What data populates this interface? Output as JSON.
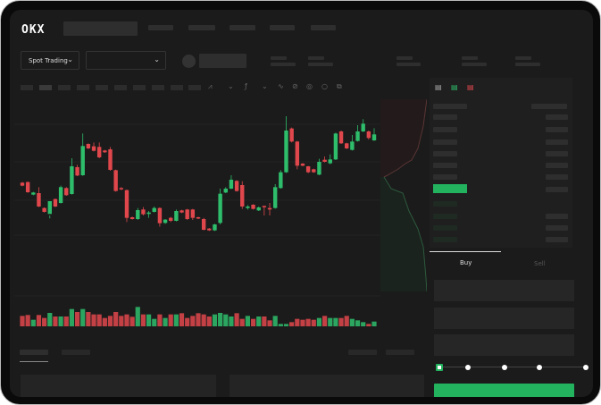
{
  "header": {
    "logo": "OKX"
  },
  "toolbar": {
    "market_type": "Spot Trading"
  },
  "order_form": {
    "tabs": [
      "Buy",
      "Sell"
    ],
    "active_tab": "Buy",
    "leverage_levels": 5,
    "selected_level": 0
  },
  "colors": {
    "background": "#1b1b1b",
    "up": "#2ebd6b",
    "down": "#e0474c",
    "accent": "#23b35f"
  },
  "chart_data": {
    "type": "candlestick",
    "grid": true,
    "candles": [
      [
        750,
        740,
        752,
        738
      ],
      [
        752,
        718,
        754,
        716
      ],
      [
        710,
        717,
        719,
        708
      ],
      [
        715,
        670,
        735,
        668
      ],
      [
        665,
        652,
        667,
        650
      ],
      [
        645,
        688,
        630,
        640
      ],
      [
        695,
        670,
        697,
        668
      ],
      [
        682,
        735,
        740,
        680
      ],
      [
        732,
        708,
        735,
        706
      ],
      [
        712,
        805,
        832,
        710
      ],
      [
        802,
        774,
        810,
        772
      ],
      [
        775,
        873,
        915,
        773
      ],
      [
        880,
        865,
        882,
        863
      ],
      [
        872,
        857,
        885,
        855
      ],
      [
        870,
        835,
        885,
        832
      ],
      [
        858,
        852,
        860,
        850
      ],
      [
        862,
        793,
        870,
        790
      ],
      [
        792,
        722,
        794,
        720
      ],
      [
        732,
        728,
        735,
        725
      ],
      [
        725,
        632,
        727,
        618
      ],
      [
        634,
        628,
        636,
        626
      ],
      [
        628,
        658,
        665,
        625
      ],
      [
        660,
        644,
        668,
        640
      ],
      [
        645,
        650,
        655,
        632
      ],
      [
        652,
        665,
        670,
        650
      ],
      [
        665,
        614,
        667,
        602
      ],
      [
        615,
        626,
        628,
        612
      ],
      [
        632,
        622,
        635,
        618
      ],
      [
        622,
        655,
        660,
        620
      ],
      [
        657,
        650,
        659,
        648
      ],
      [
        660,
        628,
        662,
        625
      ],
      [
        660,
        632,
        662,
        625
      ],
      [
        634,
        630,
        636,
        628
      ],
      [
        628,
        592,
        632,
        590
      ],
      [
        596,
        590,
        598,
        588
      ],
      [
        590,
        610,
        612,
        588
      ],
      [
        615,
        713,
        730,
        610
      ],
      [
        717,
        730,
        735,
        715
      ],
      [
        730,
        760,
        775,
        728
      ],
      [
        756,
        722,
        758,
        720
      ],
      [
        742,
        670,
        755,
        662
      ],
      [
        665,
        670,
        675,
        660
      ],
      [
        676,
        662,
        678,
        660
      ],
      [
        657,
        667,
        670,
        655
      ],
      [
        672,
        670,
        673,
        640
      ],
      [
        665,
        660,
        682,
        640
      ],
      [
        665,
        735,
        745,
        663
      ],
      [
        732,
        785,
        792,
        730
      ],
      [
        785,
        925,
        973,
        783
      ],
      [
        932,
        888,
        935,
        885
      ],
      [
        888,
        807,
        890,
        795
      ],
      [
        814,
        807,
        816,
        805
      ],
      [
        805,
        785,
        806,
        782
      ],
      [
        795,
        785,
        797,
        783
      ],
      [
        777,
        820,
        830,
        775
      ],
      [
        827,
        820,
        838,
        818
      ],
      [
        815,
        828,
        845,
        812
      ],
      [
        828,
        915,
        918,
        826
      ],
      [
        922,
        882,
        925,
        880
      ],
      [
        882,
        865,
        884,
        863
      ],
      [
        860,
        888,
        910,
        858
      ],
      [
        890,
        922,
        943,
        888
      ],
      [
        922,
        948,
        963,
        920
      ],
      [
        922,
        900,
        925,
        895
      ],
      [
        892,
        912,
        933,
        890
      ]
    ],
    "volume": [
      35,
      38,
      22,
      38,
      28,
      45,
      33,
      33,
      33,
      58,
      48,
      58,
      48,
      40,
      40,
      28,
      35,
      48,
      35,
      40,
      32,
      65,
      40,
      40,
      25,
      40,
      28,
      40,
      40,
      44,
      28,
      35,
      44,
      40,
      33,
      40,
      45,
      40,
      33,
      44,
      25,
      35,
      25,
      33,
      33,
      20,
      35,
      8,
      8,
      14,
      25,
      22,
      25,
      22,
      28,
      35,
      28,
      28,
      28,
      35,
      25,
      20,
      14,
      8,
      16
    ]
  }
}
